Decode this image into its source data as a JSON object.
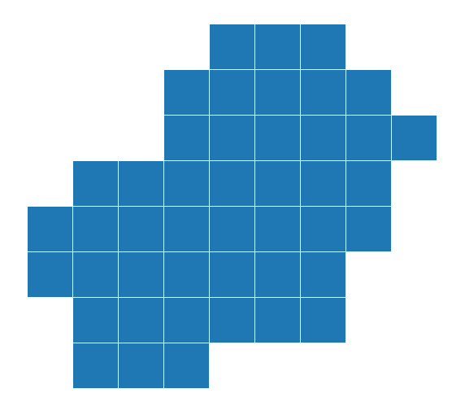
{
  "grid": {
    "cell_color": "#1f77b4",
    "line_color": "#ffffff",
    "rows": [
      [
        0,
        0,
        0,
        0,
        1,
        1,
        1,
        0,
        0
      ],
      [
        0,
        0,
        0,
        1,
        1,
        1,
        1,
        1,
        0
      ],
      [
        0,
        0,
        0,
        1,
        1,
        1,
        1,
        1,
        1
      ],
      [
        0,
        1,
        1,
        1,
        1,
        1,
        1,
        1,
        0
      ],
      [
        1,
        1,
        1,
        1,
        1,
        1,
        1,
        1,
        0
      ],
      [
        1,
        1,
        1,
        1,
        1,
        1,
        1,
        0,
        0
      ],
      [
        0,
        1,
        1,
        1,
        1,
        1,
        1,
        0,
        0
      ],
      [
        0,
        1,
        1,
        1,
        0,
        0,
        0,
        0,
        0
      ]
    ]
  }
}
